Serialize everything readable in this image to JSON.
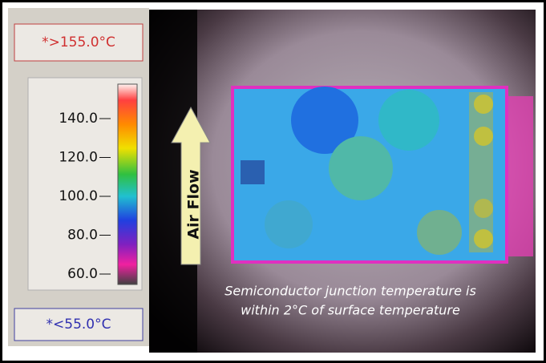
{
  "panel": {
    "max_label": "*>155.0°C",
    "min_label": "*<55.0°C",
    "scale_ticks": [
      "140.0",
      "120.0",
      "100.0",
      "80.0",
      "60.0"
    ]
  },
  "image": {
    "arrow_label": "Air Flow",
    "caption": [
      "Semiconductor junction temperature is",
      "within 2°C of surface temperature"
    ]
  }
}
